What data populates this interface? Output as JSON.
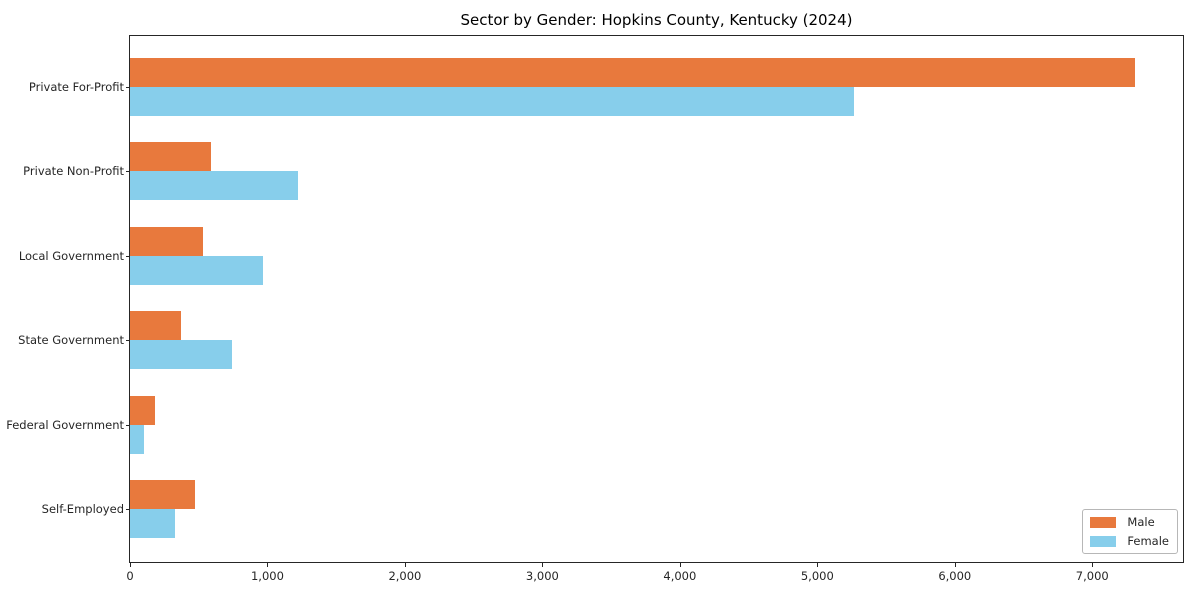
{
  "figure": {
    "title": "Sector by Gender: Hopkins County, Kentucky (2024)"
  },
  "chart_data": {
    "type": "bar",
    "orientation": "horizontal",
    "title": "Sector by Gender: Hopkins County, Kentucky (2024)",
    "categories": [
      "Private For-Profit",
      "Private Non-Profit",
      "Local Government",
      "State Government",
      "Federal Government",
      "Self-Employed"
    ],
    "series": [
      {
        "name": "Male",
        "color": "#E8793D",
        "values": [
          7310,
          590,
          530,
          370,
          180,
          470
        ]
      },
      {
        "name": "Female",
        "color": "#87CEEB",
        "values": [
          5270,
          1220,
          970,
          740,
          100,
          330
        ]
      }
    ],
    "xlabel": "",
    "ylabel": "",
    "xlim": [
      0,
      7660
    ],
    "x_ticks": [
      {
        "value": 0,
        "label": "0"
      },
      {
        "value": 1000,
        "label": "1,000"
      },
      {
        "value": 2000,
        "label": "2,000"
      },
      {
        "value": 3000,
        "label": "3,000"
      },
      {
        "value": 4000,
        "label": "4,000"
      },
      {
        "value": 5000,
        "label": "5,000"
      },
      {
        "value": 6000,
        "label": "6,000"
      },
      {
        "value": 7000,
        "label": "7,000"
      }
    ],
    "grid": false,
    "legend": {
      "position": "lower right",
      "entries": [
        "Male",
        "Female"
      ]
    }
  }
}
